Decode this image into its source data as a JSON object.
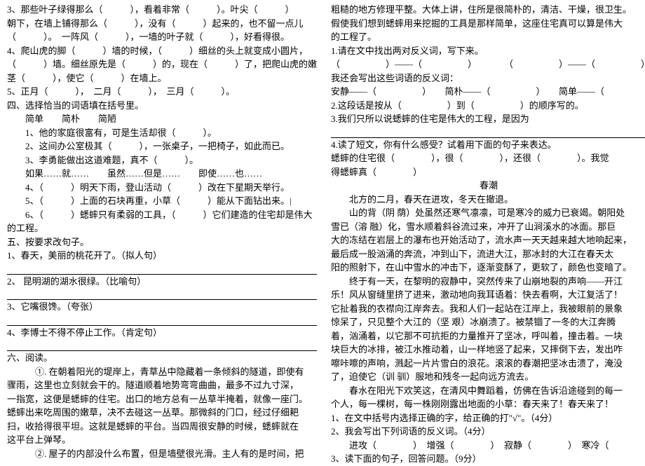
{
  "left": {
    "l1": "3、那些叶子绿得那么（　　　），看着非常（　　　）。叶尖（　　　）",
    "l2": "朝下，在墙上铺得那么（　　　），没有（　　　）起来的，也不留一点儿",
    "l3": "（　　　）。　一阵风（　　　），一墙的叶子就（　　　），好看得很。",
    "l4": "4、爬山虎的脚（　　　）墙的时候，（　　　）细丝的头上就变成小圆片，",
    "l5": "（　　　）墙。细丝原先是（　　　）的，现在（　　　）了，把爬山虎的嫩",
    "l6": "茎（　　　），使它（　　　）在墙上。",
    "l7": "5、正月（　　　），　二月（　　　），　三月（　　　）。",
    "l8": "四、选择恰当的词语填在括号里。",
    "l9": "简单　　简朴　　简陋",
    "l10": "1、他的家庭很富有，可是生活却很（　　　）。",
    "l11": "2、这间办公室极其（　　　），一张桌子，一把椅子，如此而已。",
    "l12": "3、李勇能做出这道难题，真不（　　　）。",
    "l13": "如果……就……　　虽然……但是……　　即使……也……",
    "l14": "4、（　　　）明天下雨，登山活动（　　　）改在下星期天举行。",
    "l15": "5、（　　　）上面的石块再重，小草（　　　）能从下面钻出来。|",
    "l16": "6、（　　　）蟋蟀只有柔弱的工具，（　　　）它们建造的住宅却是伟大",
    "l17": "的工程。",
    "l18": "五、按要求改句子。",
    "l19": "1、春天，美丽的桃花开了。（拟人句）",
    "l20": "2、 昆明湖的湖水很绿。（比喻句）",
    "l21": "3、它嘴很馋。（夸张）",
    "l22": "4、李博士不得不停止工作。（肯定句）",
    "l23": "六、阅读。",
    "l24": "①. 在朝着阳光的堤岸上，青草丛中隐藏着一条倾斜的隧道，即使有",
    "l25": "骤雨，这里也立刻就会干的。隧道顺着地势弯弯曲曲，最多不过九寸深，",
    "l26": "一指宽，这便是蟋蟀的住宅。出口的地方总有一丛草半掩着，就像一座门。",
    "l27": "蟋蟀出来吃周围的嫩草，决不去碰这一丛草。那微斜的门口，经过仔细耙",
    "l28": "扫，收拾得很平坦。这就是蟋蟀的平台。当四周很安静的时候，蟋蟀就在",
    "l29": "这平台上弹琴。",
    "l30": "②. 屋子的内部没什么布置，但是墙壁很光滑。主人有的是时间，把"
  },
  "right": {
    "r1": "粗糙的地方修理平整。大体上讲，住所是很简朴的，清洁、干燥，很卫生。",
    "r2": "假使我们想到蟋蟀用来挖掘的工具是那样简单，这座住宅真可以算是伟大",
    "r3": "的工程了。",
    "r4": "1.请在文中找出两对反义词，写下来。",
    "r5": "（　　　　　）——（　　　　　）　　　　（　　　　　）——（　　　　　）",
    "r6": "我还会写出这些词语的反义词：",
    "r7": "安静——（　　　　　）　　简朴——（　　　　　）　　简单——（",
    "r8": "2.这段话是按从（　　　　　）到（　　　　　）的顺序写的。",
    "r9": "3.我们只所以说蟋蟀的住宅是伟大的工程，是因为",
    "r10": "4.读了短文，你有什么感受？试着用下面的句子来表达。",
    "r11": "蟋蟀的住宅很（　　　　），很（　　　　），还很（　　　　）。我觉",
    "r12": "得蟋蟀真（　　　　）",
    "title": "春潮",
    "p1a": "北方的二月，春天在进攻，冬天在撤退。",
    "p1b": "山的背（阴 荫）处虽然还寒气凛凛，可是寒冷的威力已衰竭。朝阳处",
    "p2": "雪已（溶 融）化，雪水顺着斜谷流过来，冲开了山涧溪水的冰面。那巨",
    "p3": "大的冻结在岩层上的瀑布也开始活动了，流水声一天天越来越大地响起来，",
    "p4": "最后成一股汹涌的奔流，冲到山下，流进大江，那冰封的大江在春天太",
    "p5": "阳的照射下，在山中雪水的冲击下，逐渐变酥了，更软了，颜色也变暗了。",
    "p6": "终于有一天，在黎明的寂静中，突然传来了山崩地裂的声响——开江",
    "p7": "乐！风从窗缝里挤了进来，激动地向我耳语着：快去看啊，大江复活了！",
    "p8": "它扯着我的衣襟向江岸奔去。我和人们一起站在江岸上，我被眼前的景象",
    "p9": "惊呆了，只见整个大江的（坚 艰）冰崩溃了。被禁锢了一冬的大江奔腾",
    "p10": "着，汹涌着，以它那不可抗拒的力量推开了坚冰，呼叫着，撞击着。一块",
    "p11": "块巨大的冰排，被江水推动着，山一样地竖了起来，又摔倒下去，发出咋",
    "p12": "嚓咔嚓的声响，溅起一片片雪白的浪花。滚滚的春潮把坚冰击溃了，淹没",
    "p13": "了，迫使它（训 驯）服地和残冬一起向远方流去。",
    "p14": "春水在阳光下欢笑这，在清风中舞蹈着，仿佛在告诉沿途碰到的每一",
    "p15": "个人，每一棵树，每一株刚刚露出地面的小草：春天来了！春天来了！",
    "q1": "1、在文中括号内选择正确的字，给正确的打\"√\"。（4分）",
    "q2": "2、我会写出下列词语的反义词。（4分）",
    "q2b": "进攻（　　　　）　增强（　　　　）　寂静（　　　　）　寒冷（",
    "q3": "3、读下面的句子，回答问题。（9分）"
  }
}
